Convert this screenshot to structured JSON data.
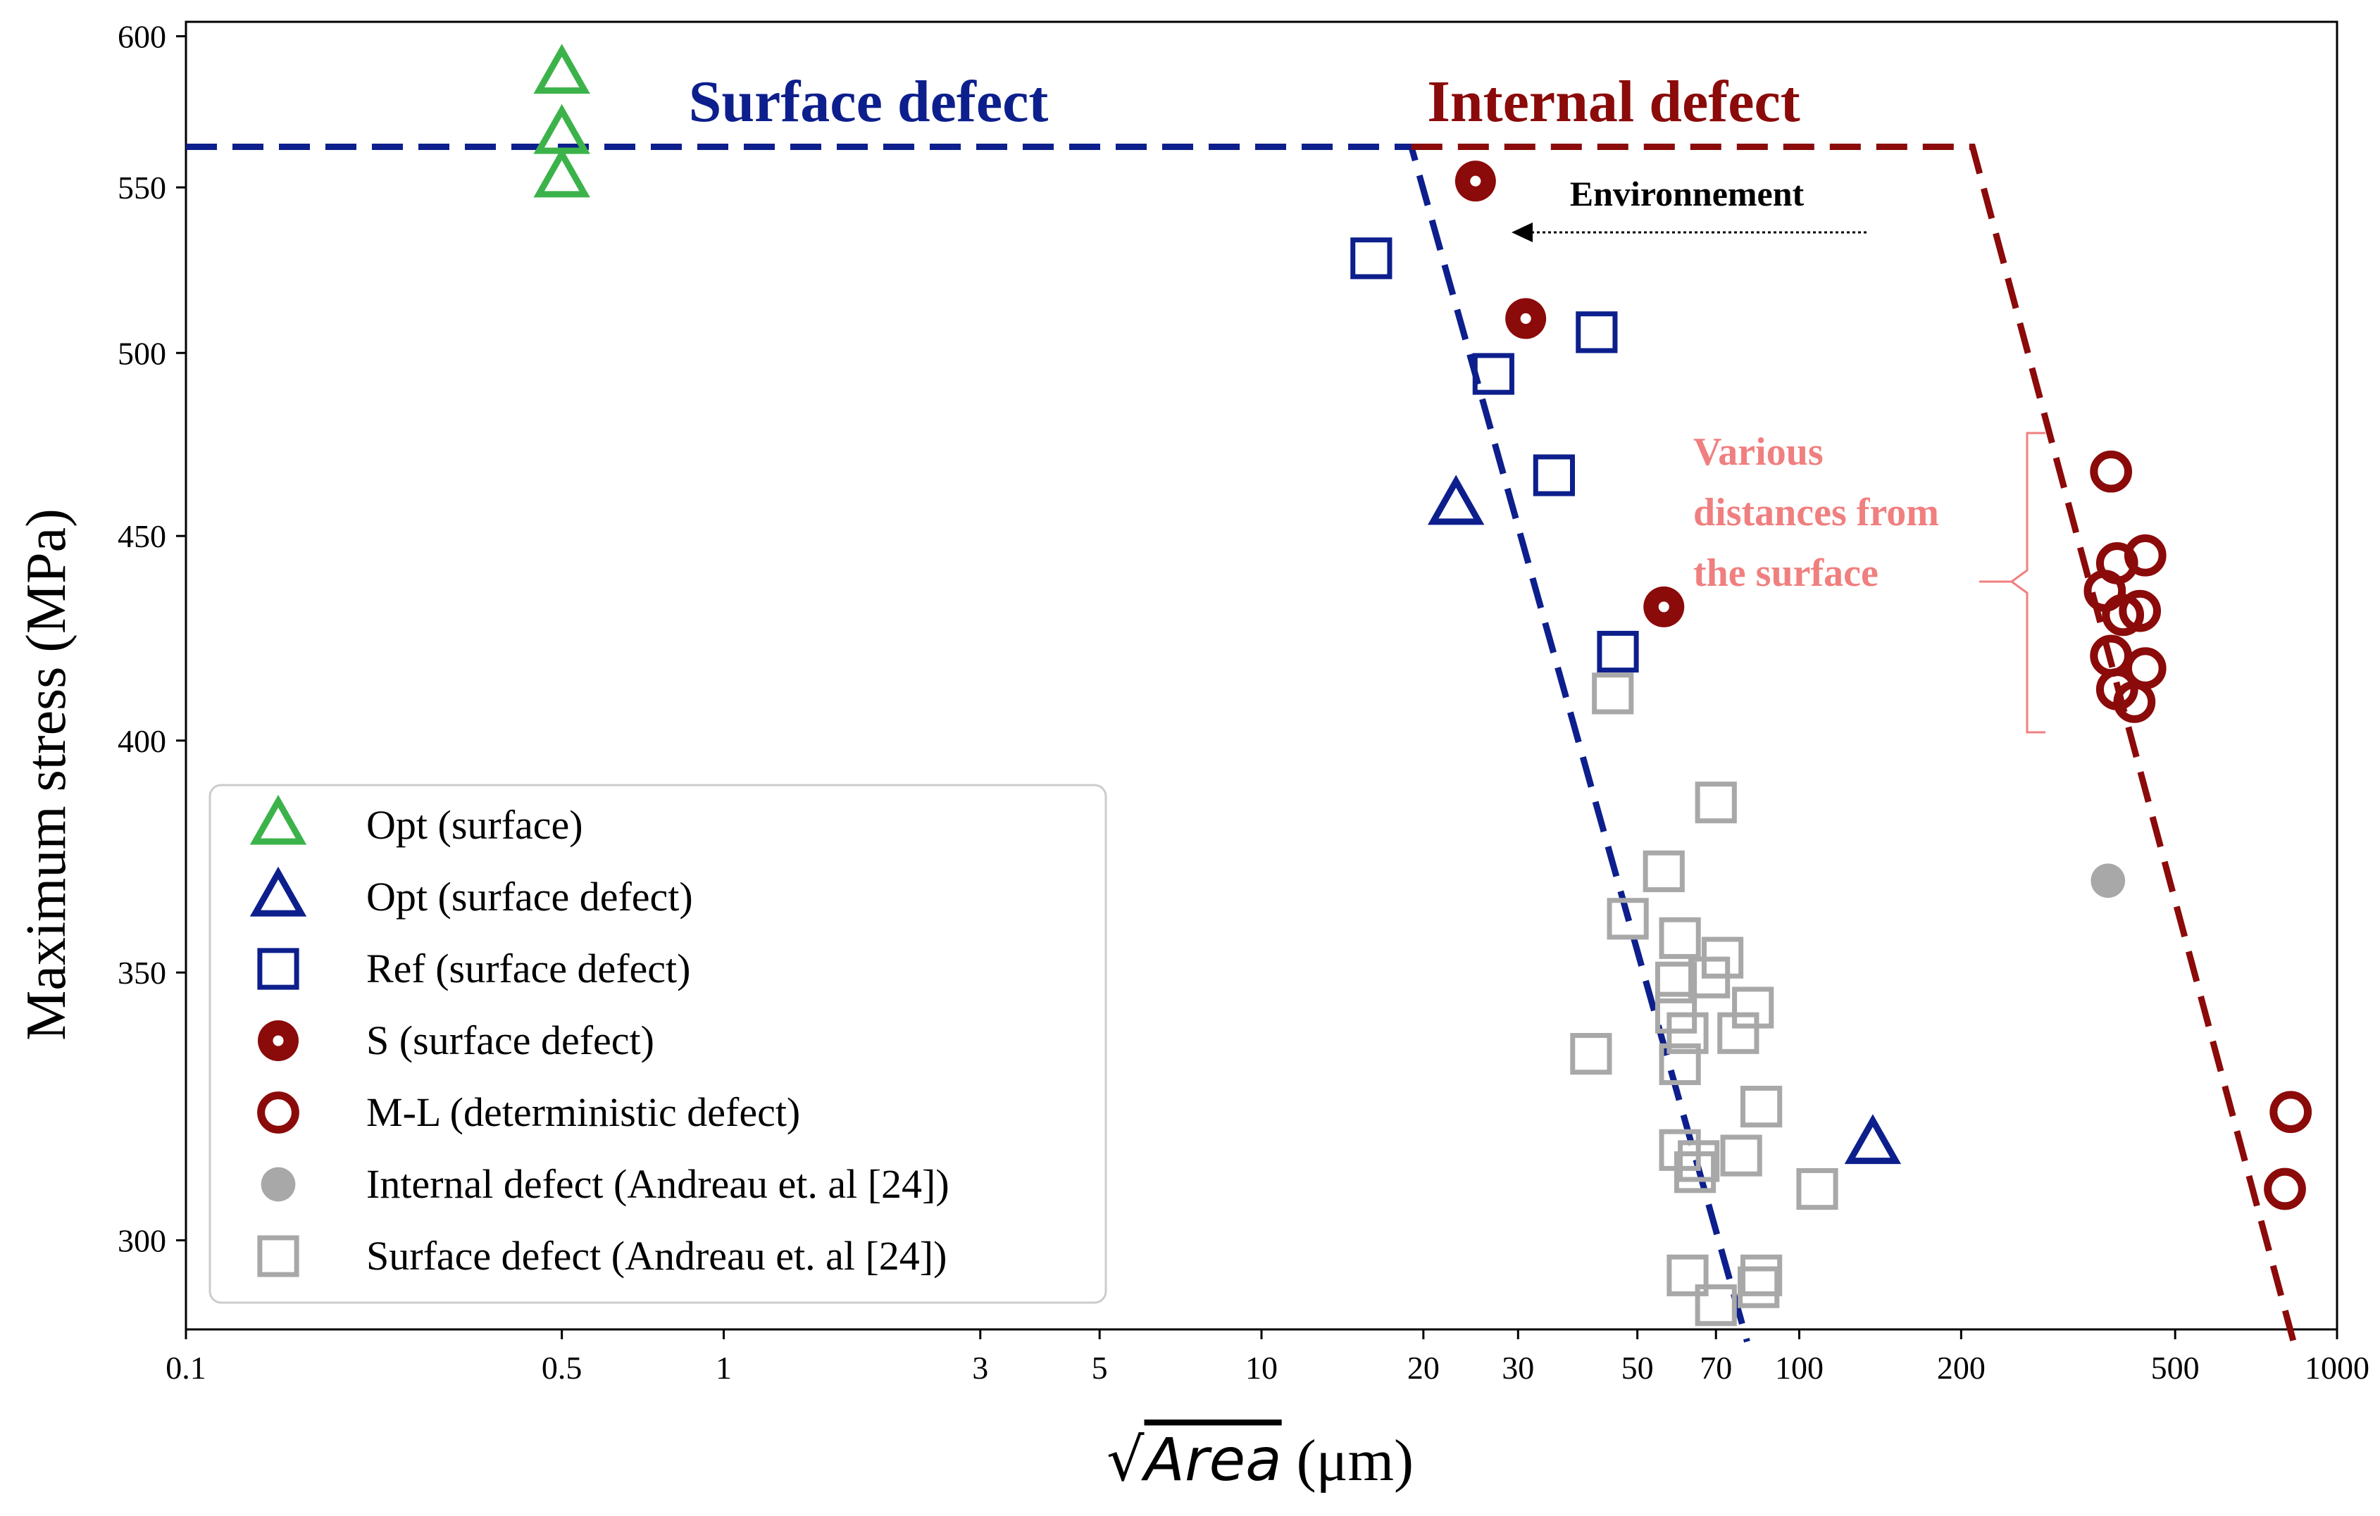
{
  "chart_data": {
    "type": "scatter",
    "title": "",
    "xlabel": {
      "radical": "√",
      "var": "Area",
      "unit": " (μm)"
    },
    "ylabel": "Maximum stress (MPa)",
    "x_scale": "log",
    "y_scale": "log",
    "xlim": [
      0.1,
      1000
    ],
    "ylim": [
      285,
      605
    ],
    "x_ticks": [
      {
        "v": 0.1,
        "label": "0.1"
      },
      {
        "v": 0.5,
        "label": "0.5"
      },
      {
        "v": 1,
        "label": "1"
      },
      {
        "v": 3,
        "label": "3"
      },
      {
        "v": 5,
        "label": "5"
      },
      {
        "v": 10,
        "label": "10"
      },
      {
        "v": 20,
        "label": "20"
      },
      {
        "v": 30,
        "label": "30"
      },
      {
        "v": 50,
        "label": "50"
      },
      {
        "v": 70,
        "label": "70"
      },
      {
        "v": 100,
        "label": "100"
      },
      {
        "v": 200,
        "label": "200"
      },
      {
        "v": 500,
        "label": "500"
      },
      {
        "v": 1000,
        "label": "1000"
      }
    ],
    "y_ticks": [
      {
        "v": 300,
        "label": "300"
      },
      {
        "v": 350,
        "label": "350"
      },
      {
        "v": 400,
        "label": "400"
      },
      {
        "v": 450,
        "label": "450"
      },
      {
        "v": 500,
        "label": "500"
      },
      {
        "v": 550,
        "label": "550"
      },
      {
        "v": 600,
        "label": "600"
      }
    ],
    "series": [
      {
        "name": "Opt (surface)",
        "marker": "triangle",
        "color": "#3cb34a",
        "fill": "none",
        "points": [
          [
            0.5,
            587
          ],
          [
            0.5,
            567
          ],
          [
            0.5,
            553
          ]
        ]
      },
      {
        "name": "Opt (surface defect)",
        "marker": "triangle",
        "color": "#0d1f8c",
        "fill": "none",
        "points": [
          [
            23,
            458
          ],
          [
            137,
            317
          ]
        ]
      },
      {
        "name": "Ref (surface defect)",
        "marker": "square",
        "color": "#0d1f8c",
        "fill": "none",
        "points": [
          [
            16,
            528
          ],
          [
            27,
            494
          ],
          [
            42,
            506
          ],
          [
            35,
            466
          ],
          [
            46,
            421
          ]
        ]
      },
      {
        "name": "S (surface defect)",
        "marker": "circle-dot",
        "color": "#8b0a0a",
        "fill": "#8b0a0a",
        "points": [
          [
            25,
            552
          ],
          [
            31,
            510
          ],
          [
            56,
            432
          ]
        ]
      },
      {
        "name": "M-L (deterministic defect)",
        "marker": "circle",
        "color": "#8b0a0a",
        "fill": "none",
        "points": [
          [
            380,
            467
          ],
          [
            390,
            443
          ],
          [
            440,
            445
          ],
          [
            370,
            436
          ],
          [
            400,
            430
          ],
          [
            430,
            431
          ],
          [
            380,
            420
          ],
          [
            440,
            417
          ],
          [
            390,
            412
          ],
          [
            420,
            409
          ],
          [
            820,
            323
          ],
          [
            800,
            309
          ]
        ]
      },
      {
        "name": "Internal defect (Andreau et. al [24])",
        "marker": "circle",
        "color": "#a8a8a8",
        "fill": "#a8a8a8",
        "points": [
          [
            375,
            369
          ]
        ]
      },
      {
        "name": "Surface defect (Andreau et. al [24])",
        "marker": "square",
        "color": "#a8a8a8",
        "fill": "none",
        "points": [
          [
            45,
            411
          ],
          [
            70,
            386
          ],
          [
            56,
            371
          ],
          [
            48,
            361
          ],
          [
            60,
            357
          ],
          [
            72,
            353
          ],
          [
            59,
            348
          ],
          [
            68,
            349
          ],
          [
            82,
            343
          ],
          [
            59,
            342
          ],
          [
            62,
            338
          ],
          [
            77,
            338
          ],
          [
            41,
            334
          ],
          [
            60,
            332
          ],
          [
            85,
            324
          ],
          [
            60,
            316
          ],
          [
            65,
            314
          ],
          [
            78,
            315
          ],
          [
            64,
            312
          ],
          [
            108,
            309
          ],
          [
            62,
            294
          ],
          [
            85,
            294
          ],
          [
            70,
            289
          ],
          [
            84,
            292
          ]
        ]
      }
    ],
    "lines": [
      {
        "name": "Surface defect boundary",
        "color": "#0d1f8c",
        "points": [
          [
            0.1,
            563
          ],
          [
            19,
            563
          ],
          [
            80,
            283
          ]
        ]
      },
      {
        "name": "Internal defect boundary",
        "color": "#8b0a0a",
        "points": [
          [
            19,
            563
          ],
          [
            210,
            563
          ],
          [
            830,
            283
          ]
        ]
      }
    ],
    "annotations": {
      "surface_defect": {
        "text": "Surface defect",
        "color": "#0d1f8c"
      },
      "internal_defect": {
        "text": "Internal defect",
        "color": "#8b0a0a"
      },
      "environnement": {
        "text": "Environnement",
        "color": "#000000"
      },
      "various_distances": {
        "lines": [
          "Various",
          "distances from",
          "the surface"
        ],
        "color": "#f07f7f"
      }
    },
    "legend": {
      "placement": "bottom-left"
    }
  }
}
